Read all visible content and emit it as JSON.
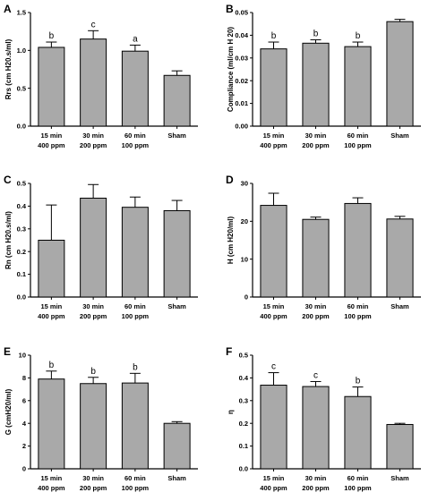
{
  "chart_data": [
    {
      "panel": "A",
      "type": "bar",
      "ylabel": "Rrs (cm H20.s/ml)",
      "ylabel_main": "R",
      "ylabel_sub": "rs",
      "ylabel_rest": " (cm H",
      "ylabel_sub2": "2",
      "ylabel_end": "0.s/ml)",
      "categories": [
        [
          "15 min",
          "400 ppm"
        ],
        [
          "30 min",
          "200 ppm"
        ],
        [
          "60 min",
          "100 ppm"
        ],
        [
          "Sham",
          ""
        ]
      ],
      "values": [
        1.04,
        1.15,
        0.99,
        0.67
      ],
      "errors": [
        0.07,
        0.11,
        0.08,
        0.06
      ],
      "annotations": [
        "b",
        "c",
        "a",
        ""
      ],
      "ylim": [
        0,
        1.5
      ],
      "yticks": [
        0.0,
        0.5,
        1.0,
        1.5
      ],
      "tick_labels": [
        "0.0",
        "0.5",
        "1.0",
        "1.5"
      ]
    },
    {
      "panel": "B",
      "type": "bar",
      "ylabel": "Compliance (ml/cm H 20)",
      "categories": [
        [
          "15 min",
          "400 ppm"
        ],
        [
          "30 min",
          "200 ppm"
        ],
        [
          "60 min",
          "100 ppm"
        ],
        [
          "Sham",
          ""
        ]
      ],
      "values": [
        0.034,
        0.0365,
        0.035,
        0.046
      ],
      "errors": [
        0.003,
        0.0015,
        0.002,
        0.001
      ],
      "annotations": [
        "b",
        "b",
        "b",
        ""
      ],
      "ylim": [
        0,
        0.05
      ],
      "yticks": [
        0.0,
        0.01,
        0.02,
        0.03,
        0.04,
        0.05
      ],
      "tick_labels": [
        "0.00",
        "0.01",
        "0.02",
        "0.03",
        "0.04",
        "0.05"
      ]
    },
    {
      "panel": "C",
      "type": "bar",
      "ylabel": "Rn (cm H20.s/ml)",
      "categories": [
        [
          "15 min",
          "400 ppm"
        ],
        [
          "30 min",
          "200 ppm"
        ],
        [
          "60 min",
          "100 ppm"
        ],
        [
          "Sham",
          ""
        ]
      ],
      "values": [
        0.25,
        0.435,
        0.395,
        0.38
      ],
      "errors": [
        0.155,
        0.06,
        0.045,
        0.045
      ],
      "annotations": [
        "",
        "",
        "",
        ""
      ],
      "ylim": [
        0,
        0.5
      ],
      "yticks": [
        0.0,
        0.1,
        0.2,
        0.3,
        0.4,
        0.5
      ],
      "tick_labels": [
        "0.0",
        "0.1",
        "0.2",
        "0.3",
        "0.4",
        "0.5"
      ]
    },
    {
      "panel": "D",
      "type": "bar",
      "ylabel": "H (cm H20/ml)",
      "categories": [
        [
          "15 min",
          "400 ppm"
        ],
        [
          "30 min",
          "200 ppm"
        ],
        [
          "60 min",
          "100 ppm"
        ],
        [
          "Sham",
          ""
        ]
      ],
      "values": [
        24.2,
        20.5,
        24.7,
        20.6
      ],
      "errors": [
        3.2,
        0.6,
        1.5,
        0.7
      ],
      "annotations": [
        "",
        "",
        "",
        ""
      ],
      "ylim": [
        0,
        30
      ],
      "yticks": [
        0,
        10,
        20,
        30
      ],
      "tick_labels": [
        "0",
        "10",
        "20",
        "30"
      ]
    },
    {
      "panel": "E",
      "type": "bar",
      "ylabel": "G (cmH20/ml)",
      "categories": [
        [
          "15 min",
          "400 ppm"
        ],
        [
          "30 min",
          "200 ppm"
        ],
        [
          "60 min",
          "100 ppm"
        ],
        [
          "Sham",
          ""
        ]
      ],
      "values": [
        7.9,
        7.5,
        7.55,
        4.0
      ],
      "errors": [
        0.7,
        0.55,
        0.85,
        0.15
      ],
      "annotations": [
        "b",
        "b",
        "b",
        ""
      ],
      "ylim": [
        0,
        10
      ],
      "yticks": [
        0,
        2,
        4,
        6,
        8,
        10
      ],
      "tick_labels": [
        "0",
        "2",
        "4",
        "6",
        "8",
        "10"
      ]
    },
    {
      "panel": "F",
      "type": "bar",
      "ylabel": "η",
      "categories": [
        [
          "15 min",
          "400 ppm"
        ],
        [
          "30 min",
          "200 ppm"
        ],
        [
          "60 min",
          "100 ppm"
        ],
        [
          "Sham",
          ""
        ]
      ],
      "values": [
        0.368,
        0.362,
        0.318,
        0.195
      ],
      "errors": [
        0.055,
        0.022,
        0.042,
        0.005
      ],
      "annotations": [
        "c",
        "c",
        "b",
        ""
      ],
      "ylim": [
        0,
        0.5
      ],
      "yticks": [
        0.0,
        0.1,
        0.2,
        0.3,
        0.4,
        0.5
      ],
      "tick_labels": [
        "0.0",
        "0.1",
        "0.2",
        "0.3",
        "0.4",
        "0.5"
      ]
    }
  ],
  "colors": {
    "bar": "#a9a9a9",
    "axis": "#000000"
  }
}
